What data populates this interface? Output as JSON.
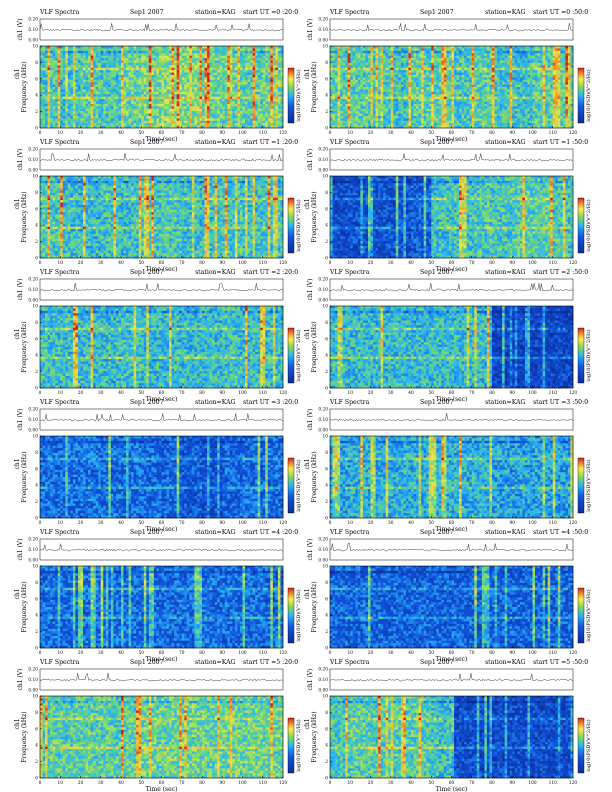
{
  "header": {
    "title": "VLF Spectra",
    "date": "Sep1 2007",
    "station": "station=KAG"
  },
  "labels": {
    "ch1_v": "ch1 (V)",
    "ch1": "ch1",
    "frequency": "Frequency (kHz)",
    "time": "Time (sec)",
    "colorbar": "log10(PSD)(V^2/Hz)"
  },
  "colors": {
    "background": "#0b2fb0",
    "low": "#0a2d99",
    "mid": "#29b5f6",
    "green": "#7ed957",
    "yellow": "#ffe94d",
    "red": "#d4231e"
  },
  "chart_data": [
    {
      "type": "heatmap",
      "start_ut": "start UT =0 :20:0",
      "xlim": [
        0,
        120
      ],
      "ylim": [
        0,
        10
      ],
      "amp_ylim": [
        0,
        0.2
      ],
      "xticks": [
        0,
        10,
        20,
        30,
        40,
        50,
        60,
        70,
        80,
        90,
        100,
        110,
        120
      ],
      "yticks": [
        0,
        2,
        4,
        6,
        8,
        10
      ],
      "amp_ticks": [
        "0.00",
        "0.10",
        "0.20"
      ],
      "intensity": [
        0.52,
        0.5,
        0.55,
        0.52,
        0.58,
        0.6,
        0.62,
        0.6,
        0.58,
        0.56,
        0.55,
        0.58
      ]
    },
    {
      "type": "heatmap",
      "start_ut": "start UT =0 :50:0",
      "xlim": [
        0,
        120
      ],
      "ylim": [
        0,
        10
      ],
      "amp_ylim": [
        0,
        0.2
      ],
      "xticks": [
        0,
        10,
        20,
        30,
        40,
        50,
        60,
        70,
        80,
        90,
        100,
        110,
        120
      ],
      "yticks": [
        0,
        2,
        4,
        6,
        8,
        10
      ],
      "amp_ticks": [
        "0.00",
        "0.10",
        "0.20"
      ],
      "intensity": [
        0.55,
        0.55,
        0.52,
        0.5,
        0.55,
        0.55,
        0.52,
        0.55,
        0.52,
        0.5,
        0.55,
        0.55
      ]
    },
    {
      "type": "heatmap",
      "start_ut": "start UT =1 :20:0",
      "xlim": [
        0,
        120
      ],
      "ylim": [
        0,
        10
      ],
      "amp_ylim": [
        0,
        0.2
      ],
      "xticks": [
        0,
        10,
        20,
        30,
        40,
        50,
        60,
        70,
        80,
        90,
        100,
        110,
        120
      ],
      "yticks": [
        0,
        2,
        4,
        6,
        8,
        10
      ],
      "amp_ticks": [
        "0.00",
        "0.10",
        "0.20"
      ],
      "intensity": [
        0.52,
        0.5,
        0.48,
        0.5,
        0.5,
        0.52,
        0.52,
        0.5,
        0.5,
        0.52,
        0.5,
        0.52
      ]
    },
    {
      "type": "heatmap",
      "start_ut": "start UT =1 :50:0",
      "xlim": [
        0,
        120
      ],
      "ylim": [
        0,
        10
      ],
      "amp_ylim": [
        0,
        0.2
      ],
      "xticks": [
        0,
        10,
        20,
        30,
        40,
        50,
        60,
        70,
        80,
        90,
        100,
        110,
        120
      ],
      "yticks": [
        0,
        2,
        4,
        6,
        8,
        10
      ],
      "amp_ticks": [
        "0.00",
        "0.10",
        "0.20"
      ],
      "intensity": [
        0.2,
        0.22,
        0.22,
        0.22,
        0.25,
        0.5,
        0.5,
        0.52,
        0.52,
        0.55,
        0.55,
        0.52
      ]
    },
    {
      "type": "heatmap",
      "start_ut": "start UT =2 :20:0",
      "xlim": [
        0,
        120
      ],
      "ylim": [
        0,
        10
      ],
      "amp_ylim": [
        0,
        0.2
      ],
      "xticks": [
        0,
        10,
        20,
        30,
        40,
        50,
        60,
        70,
        80,
        90,
        100,
        110,
        120
      ],
      "yticks": [
        0,
        2,
        4,
        6,
        8,
        10
      ],
      "amp_ticks": [
        "0.00",
        "0.10",
        "0.20"
      ],
      "intensity": [
        0.5,
        0.5,
        0.48,
        0.48,
        0.5,
        0.48,
        0.48,
        0.48,
        0.48,
        0.5,
        0.48,
        0.48
      ]
    },
    {
      "type": "heatmap",
      "start_ut": "start UT =2 :50:0",
      "xlim": [
        0,
        120
      ],
      "ylim": [
        0,
        10
      ],
      "amp_ylim": [
        0,
        0.2
      ],
      "xticks": [
        0,
        10,
        20,
        30,
        40,
        50,
        60,
        70,
        80,
        90,
        100,
        110,
        120
      ],
      "yticks": [
        0,
        2,
        4,
        6,
        8,
        10
      ],
      "amp_ticks": [
        "0.00",
        "0.10",
        "0.20"
      ],
      "intensity": [
        0.48,
        0.48,
        0.48,
        0.48,
        0.48,
        0.48,
        0.48,
        0.48,
        0.18,
        0.18,
        0.18,
        0.18
      ]
    },
    {
      "type": "heatmap",
      "start_ut": "start UT =3 :20:0",
      "xlim": [
        0,
        120
      ],
      "ylim": [
        0,
        10
      ],
      "amp_ylim": [
        0,
        0.2
      ],
      "xticks": [
        0,
        10,
        20,
        30,
        40,
        50,
        60,
        70,
        80,
        90,
        100,
        110,
        120
      ],
      "yticks": [
        0,
        2,
        4,
        6,
        8,
        10
      ],
      "amp_ticks": [
        "0.00",
        "0.10",
        "0.20"
      ],
      "intensity": [
        0.3,
        0.3,
        0.32,
        0.3,
        0.3,
        0.3,
        0.28,
        0.25,
        0.22,
        0.28,
        0.3,
        0.3
      ]
    },
    {
      "type": "heatmap",
      "start_ut": "start UT =3 :50:0",
      "xlim": [
        0,
        120
      ],
      "ylim": [
        0,
        10
      ],
      "amp_ylim": [
        0,
        0.2
      ],
      "xticks": [
        0,
        10,
        20,
        30,
        40,
        50,
        60,
        70,
        80,
        90,
        100,
        110,
        120
      ],
      "yticks": [
        0,
        2,
        4,
        6,
        8,
        10
      ],
      "amp_ticks": [
        "0.00",
        "0.10",
        "0.20"
      ],
      "intensity": [
        0.42,
        0.45,
        0.45,
        0.45,
        0.45,
        0.45,
        0.45,
        0.45,
        0.42,
        0.42,
        0.42,
        0.42
      ]
    },
    {
      "type": "heatmap",
      "start_ut": "start UT =4 :20:0",
      "xlim": [
        0,
        120
      ],
      "ylim": [
        0,
        10
      ],
      "amp_ylim": [
        0,
        0.2
      ],
      "xticks": [
        0,
        10,
        20,
        30,
        40,
        50,
        60,
        70,
        80,
        90,
        100,
        110,
        120
      ],
      "yticks": [
        0,
        2,
        4,
        6,
        8,
        10
      ],
      "amp_ticks": [
        "0.00",
        "0.10",
        "0.20"
      ],
      "intensity": [
        0.3,
        0.3,
        0.3,
        0.3,
        0.3,
        0.3,
        0.3,
        0.3,
        0.3,
        0.3,
        0.3,
        0.3
      ]
    },
    {
      "type": "heatmap",
      "start_ut": "start UT =4 :50:0",
      "xlim": [
        0,
        120
      ],
      "ylim": [
        0,
        10
      ],
      "amp_ylim": [
        0,
        0.2
      ],
      "xticks": [
        0,
        10,
        20,
        30,
        40,
        50,
        60,
        70,
        80,
        90,
        100,
        110,
        120
      ],
      "yticks": [
        0,
        2,
        4,
        6,
        8,
        10
      ],
      "amp_ticks": [
        "0.00",
        "0.10",
        "0.20"
      ],
      "intensity": [
        0.28,
        0.28,
        0.28,
        0.28,
        0.28,
        0.28,
        0.28,
        0.28,
        0.28,
        0.28,
        0.28,
        0.28
      ]
    },
    {
      "type": "heatmap",
      "start_ut": "start UT =5 :20:0",
      "xlim": [
        0,
        120
      ],
      "ylim": [
        0,
        10
      ],
      "amp_ylim": [
        0,
        0.2
      ],
      "xticks": [
        0,
        10,
        20,
        30,
        40,
        50,
        60,
        70,
        80,
        90,
        100,
        110,
        120
      ],
      "yticks": [
        0,
        2,
        4,
        6,
        8,
        10
      ],
      "amp_ticks": [
        "0.00",
        "0.10",
        "0.20"
      ],
      "intensity": [
        0.55,
        0.55,
        0.55,
        0.55,
        0.55,
        0.58,
        0.58,
        0.58,
        0.58,
        0.58,
        0.58,
        0.58
      ]
    },
    {
      "type": "heatmap",
      "start_ut": "start UT =5 :50:0",
      "xlim": [
        0,
        120
      ],
      "ylim": [
        0,
        10
      ],
      "amp_ylim": [
        0,
        0.2
      ],
      "xticks": [
        0,
        10,
        20,
        30,
        40,
        50,
        60,
        70,
        80,
        90,
        100,
        110,
        120
      ],
      "yticks": [
        0,
        2,
        4,
        6,
        8,
        10
      ],
      "amp_ticks": [
        "0.00",
        "0.10",
        "0.20"
      ],
      "intensity": [
        0.52,
        0.55,
        0.55,
        0.55,
        0.55,
        0.5,
        0.2,
        0.2,
        0.2,
        0.2,
        0.2,
        0.2
      ]
    }
  ]
}
